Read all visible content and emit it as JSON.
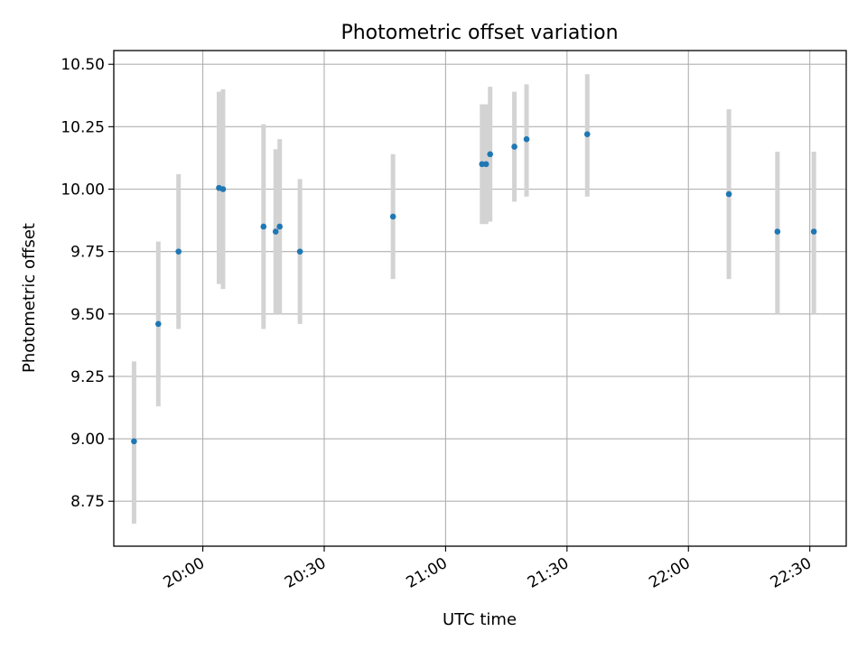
{
  "chart_data": {
    "type": "scatter",
    "title": "Photometric offset variation",
    "xlabel": "UTC time",
    "ylabel": "Photometric offset",
    "x_axis": {
      "type": "time",
      "range": [
        "19:38",
        "22:39"
      ],
      "ticks": [
        "20:00",
        "20:30",
        "21:00",
        "21:30",
        "22:00",
        "22:30"
      ]
    },
    "y_axis": {
      "range": [
        8.57,
        10.555
      ],
      "ticks": [
        "8.75",
        "9.00",
        "9.25",
        "9.50",
        "9.75",
        "10.00",
        "10.25",
        "10.50"
      ]
    },
    "grid": true,
    "point_color": "#1f77b4",
    "errorbar_color": "#d3d3d3",
    "points": [
      {
        "time": "19:43",
        "y": 8.99,
        "low": 8.66,
        "high": 9.31
      },
      {
        "time": "19:49",
        "y": 9.46,
        "low": 9.13,
        "high": 9.79
      },
      {
        "time": "19:54",
        "y": 9.75,
        "low": 9.44,
        "high": 10.06
      },
      {
        "time": "20:04",
        "y": 10.005,
        "low": 9.62,
        "high": 10.39
      },
      {
        "time": "20:05",
        "y": 10.0,
        "low": 9.6,
        "high": 10.4
      },
      {
        "time": "20:15",
        "y": 9.85,
        "low": 9.44,
        "high": 10.26
      },
      {
        "time": "20:18",
        "y": 9.83,
        "low": 9.5,
        "high": 10.16
      },
      {
        "time": "20:19",
        "y": 9.85,
        "low": 9.5,
        "high": 10.2
      },
      {
        "time": "20:24",
        "y": 9.75,
        "low": 9.46,
        "high": 10.04
      },
      {
        "time": "20:47",
        "y": 9.89,
        "low": 9.64,
        "high": 10.14
      },
      {
        "time": "21:09",
        "y": 10.1,
        "low": 9.86,
        "high": 10.34
      },
      {
        "time": "21:10",
        "y": 10.1,
        "low": 9.86,
        "high": 10.34
      },
      {
        "time": "21:11",
        "y": 10.14,
        "low": 9.87,
        "high": 10.41
      },
      {
        "time": "21:17",
        "y": 10.17,
        "low": 9.95,
        "high": 10.39
      },
      {
        "time": "21:20",
        "y": 10.2,
        "low": 9.97,
        "high": 10.42
      },
      {
        "time": "21:35",
        "y": 10.22,
        "low": 9.97,
        "high": 10.46
      },
      {
        "time": "22:10",
        "y": 9.98,
        "low": 9.64,
        "high": 10.32
      },
      {
        "time": "22:22",
        "y": 9.83,
        "low": 9.5,
        "high": 10.15
      },
      {
        "time": "22:31",
        "y": 9.83,
        "low": 9.5,
        "high": 10.15
      }
    ]
  }
}
